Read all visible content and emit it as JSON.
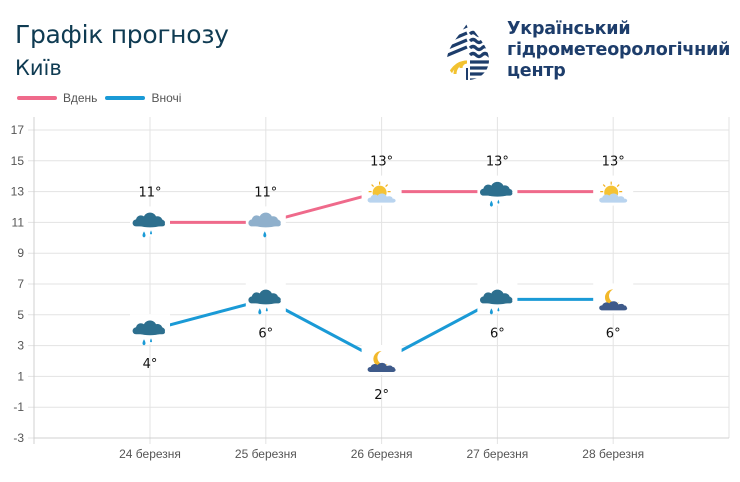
{
  "header": {
    "title": "Графік прогнозу",
    "city": "Київ"
  },
  "logo": {
    "line1": "Український",
    "line2": "гідрометеорологічний",
    "line3": "центр",
    "colors": {
      "navy": "#1d3d6b",
      "yellow": "#f2c230"
    }
  },
  "legend": [
    {
      "label": "Вдень",
      "color": "#ef6a8b"
    },
    {
      "label": "Вночі",
      "color": "#1a9ad6"
    }
  ],
  "chart_data": {
    "type": "line",
    "title": "Графік прогнозу",
    "subtitle": "Київ",
    "xlabel": "",
    "ylabel": "",
    "categories": [
      "24 березня",
      "25 березня",
      "26 березня",
      "27 березня",
      "28 березня"
    ],
    "series": [
      {
        "name": "Вдень",
        "color": "#ef6a8b",
        "values": [
          11,
          11,
          13,
          13,
          13
        ],
        "labels": [
          "11°",
          "11°",
          "13°",
          "13°",
          "13°"
        ],
        "icons": [
          "rain-cloud-dark",
          "rain-cloud-light",
          "sun-cloud",
          "rain-cloud-dark",
          "sun-cloud"
        ]
      },
      {
        "name": "Вночі",
        "color": "#1a9ad6",
        "values": [
          4,
          6,
          2,
          6,
          6
        ],
        "labels": [
          "4°",
          "6°",
          "2°",
          "6°",
          "6°"
        ],
        "icons": [
          "rain-cloud-dark",
          "rain-cloud-dark",
          "moon-cloud",
          "rain-cloud-dark",
          "moon-cloud"
        ]
      }
    ],
    "yticks": [
      17,
      15,
      13,
      11,
      9,
      7,
      5,
      3,
      1,
      -1,
      -3
    ],
    "ylim": [
      -3,
      17
    ],
    "grid": true,
    "legend_position": "top-left"
  }
}
